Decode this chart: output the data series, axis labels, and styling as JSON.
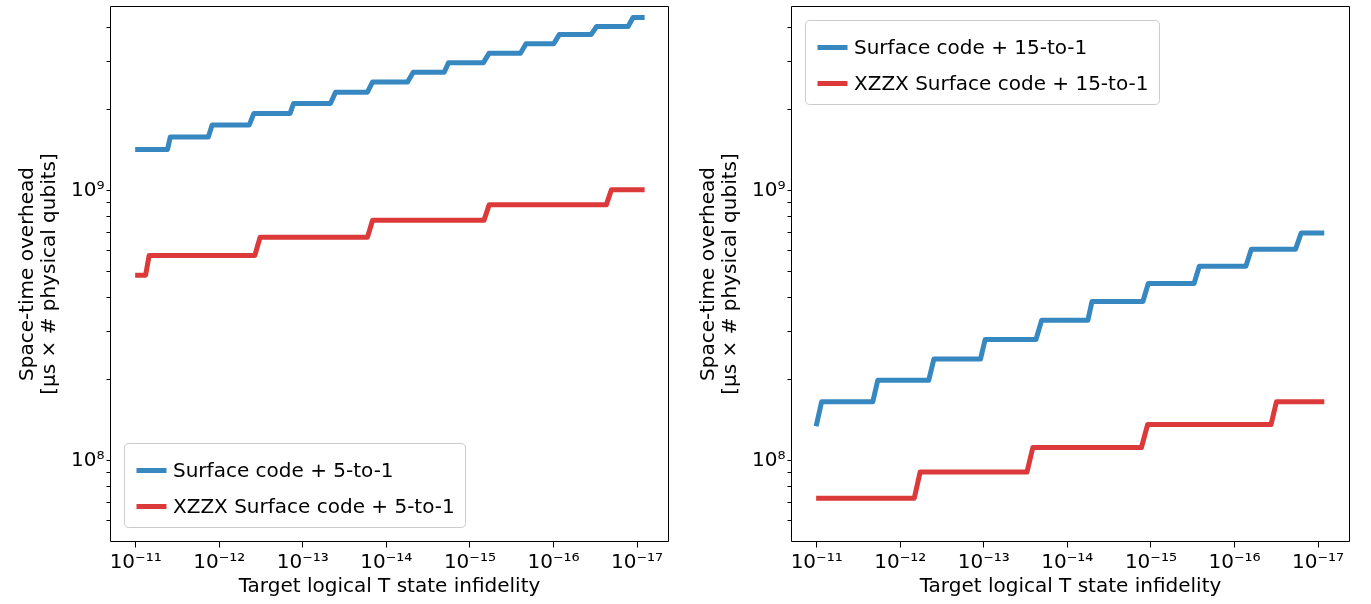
{
  "chart_data": [
    {
      "type": "line",
      "xlabel": "Target logical T state infidelity",
      "ylabel": "Space-time overhead\n[μs × # physical qubits]",
      "log": "xy",
      "grid": false,
      "legend": "bottom left",
      "line_style": "solid",
      "xlim": [
        2e-11,
        4.2e-18
      ],
      "xticks": [
        {
          "value": 1e-11,
          "label": "10⁻¹¹"
        },
        {
          "value": 1e-12,
          "label": "10⁻¹²"
        },
        {
          "value": 1e-13,
          "label": "10⁻¹³"
        },
        {
          "value": 1e-14,
          "label": "10⁻¹⁴"
        },
        {
          "value": 1e-15,
          "label": "10⁻¹⁵"
        },
        {
          "value": 1e-16,
          "label": "10⁻¹⁶"
        },
        {
          "value": 1e-17,
          "label": "10⁻¹⁷"
        }
      ],
      "ylim": [
        50000000.0,
        4800000000.0
      ],
      "yticks": [
        {
          "value": 60000000.0,
          "label": null
        },
        {
          "value": 70000000.0,
          "label": null
        },
        {
          "value": 80000000.0,
          "label": null
        },
        {
          "value": 90000000.0,
          "label": null
        },
        {
          "value": 100000000.0,
          "label": "10⁸"
        },
        {
          "value": 200000000.0,
          "label": null
        },
        {
          "value": 300000000.0,
          "label": null
        },
        {
          "value": 400000000.0,
          "label": null
        },
        {
          "value": 500000000.0,
          "label": null
        },
        {
          "value": 600000000.0,
          "label": null
        },
        {
          "value": 700000000.0,
          "label": null
        },
        {
          "value": 800000000.0,
          "label": null
        },
        {
          "value": 900000000.0,
          "label": null
        },
        {
          "value": 1000000000.0,
          "label": "10⁹"
        },
        {
          "value": 2000000000.0,
          "label": null
        },
        {
          "value": 3000000000.0,
          "label": null
        },
        {
          "value": 4000000000.0,
          "label": null
        }
      ],
      "series": [
        {
          "name": "Surface code + 5-to-1",
          "color": "#3787c0",
          "x": [
            1e-11,
            4.1e-12,
            3.8e-12,
            1.33e-12,
            1.2e-12,
            4.3e-13,
            3.8e-13,
            1.4e-13,
            1.27e-13,
            4.6e-14,
            4e-14,
            1.66e-14,
            1.44e-14,
            5.5e-15,
            4.7e-15,
            2e-15,
            1.78e-15,
            6.8e-16,
            5.8e-16,
            2.45e-16,
            2.1e-16,
            9.8e-17,
            8.4e-17,
            3.5e-17,
            3e-17,
            1.26e-17,
            1.1e-17,
            8e-18
          ],
          "values": [
            1410000000.0,
            1410000000.0,
            1570000000.0,
            1570000000.0,
            1740000000.0,
            1740000000.0,
            1920000000.0,
            1920000000.0,
            2090000000.0,
            2090000000.0,
            2300000000.0,
            2300000000.0,
            2510000000.0,
            2510000000.0,
            2730000000.0,
            2730000000.0,
            2960000000.0,
            2960000000.0,
            3210000000.0,
            3210000000.0,
            3480000000.0,
            3480000000.0,
            3760000000.0,
            3760000000.0,
            4030000000.0,
            4030000000.0,
            4350000000.0,
            4350000000.0
          ]
        },
        {
          "name": "XZZX Surface code + 5-to-1",
          "color": "#dc3a3a",
          "x": [
            1e-11,
            7.5e-12,
            6.8e-12,
            3.7e-13,
            3.2e-13,
            1.66e-14,
            1.44e-14,
            6.7e-16,
            5.8e-16,
            2.3e-17,
            2e-17,
            8e-18
          ],
          "values": [
            483000000.0,
            483000000.0,
            571000000.0,
            571000000.0,
            667000000.0,
            667000000.0,
            771000000.0,
            771000000.0,
            880000000.0,
            880000000.0,
            1000000000.0,
            1000000000.0
          ]
        }
      ]
    },
    {
      "type": "line",
      "xlabel": "Target logical T state infidelity",
      "ylabel": "Space-time overhead\n[μs × # physical qubits]",
      "log": "xy",
      "grid": false,
      "legend": "top left",
      "line_style": "solid",
      "xlim": [
        2e-11,
        4.2e-18
      ],
      "xticks": [
        {
          "value": 1e-11,
          "label": "10⁻¹¹"
        },
        {
          "value": 1e-12,
          "label": "10⁻¹²"
        },
        {
          "value": 1e-13,
          "label": "10⁻¹³"
        },
        {
          "value": 1e-14,
          "label": "10⁻¹⁴"
        },
        {
          "value": 1e-15,
          "label": "10⁻¹⁵"
        },
        {
          "value": 1e-16,
          "label": "10⁻¹⁶"
        },
        {
          "value": 1e-17,
          "label": "10⁻¹⁷"
        }
      ],
      "ylim": [
        50000000.0,
        4800000000.0
      ],
      "yticks": [
        {
          "value": 60000000.0,
          "label": null
        },
        {
          "value": 70000000.0,
          "label": null
        },
        {
          "value": 80000000.0,
          "label": null
        },
        {
          "value": 90000000.0,
          "label": null
        },
        {
          "value": 100000000.0,
          "label": "10⁸"
        },
        {
          "value": 200000000.0,
          "label": null
        },
        {
          "value": 300000000.0,
          "label": null
        },
        {
          "value": 400000000.0,
          "label": null
        },
        {
          "value": 500000000.0,
          "label": null
        },
        {
          "value": 600000000.0,
          "label": null
        },
        {
          "value": 700000000.0,
          "label": null
        },
        {
          "value": 800000000.0,
          "label": null
        },
        {
          "value": 900000000.0,
          "label": null
        },
        {
          "value": 1000000000.0,
          "label": "10⁹"
        },
        {
          "value": 2000000000.0,
          "label": null
        },
        {
          "value": 3000000000.0,
          "label": null
        },
        {
          "value": 4000000000.0,
          "label": null
        }
      ],
      "series": [
        {
          "name": "Surface code + 15-to-1",
          "color": "#3787c0",
          "x": [
            1e-11,
            8.6e-12,
            2.1e-12,
            1.83e-12,
            4.5e-13,
            3.9e-13,
            1.08e-13,
            9.5e-14,
            2.34e-14,
            2e-14,
            5.6e-15,
            5e-15,
            1.23e-15,
            1.06e-15,
            3e-16,
            2.6e-16,
            7.2e-17,
            6.2e-17,
            1.83e-17,
            1.57e-17,
            8.3e-18
          ],
          "values": [
            133000000.0,
            164000000.0,
            164000000.0,
            197000000.0,
            197000000.0,
            236000000.0,
            236000000.0,
            279000000.0,
            279000000.0,
            329000000.0,
            329000000.0,
            386000000.0,
            386000000.0,
            450000000.0,
            450000000.0,
            521000000.0,
            521000000.0,
            603000000.0,
            603000000.0,
            692000000.0,
            692000000.0
          ]
        },
        {
          "name": "XZZX Surface code + 15-to-1",
          "color": "#dc3a3a",
          "x": [
            1e-11,
            6.7e-13,
            5.7e-13,
            3e-14,
            2.55e-14,
            1.28e-15,
            1.08e-15,
            3.6e-17,
            3.1e-17,
            8.3e-18
          ],
          "values": [
            72000000.0,
            72000000.0,
            90000000.0,
            90000000.0,
            111000000.0,
            111000000.0,
            135000000.0,
            135000000.0,
            164000000.0,
            164000000.0
          ]
        }
      ]
    }
  ]
}
